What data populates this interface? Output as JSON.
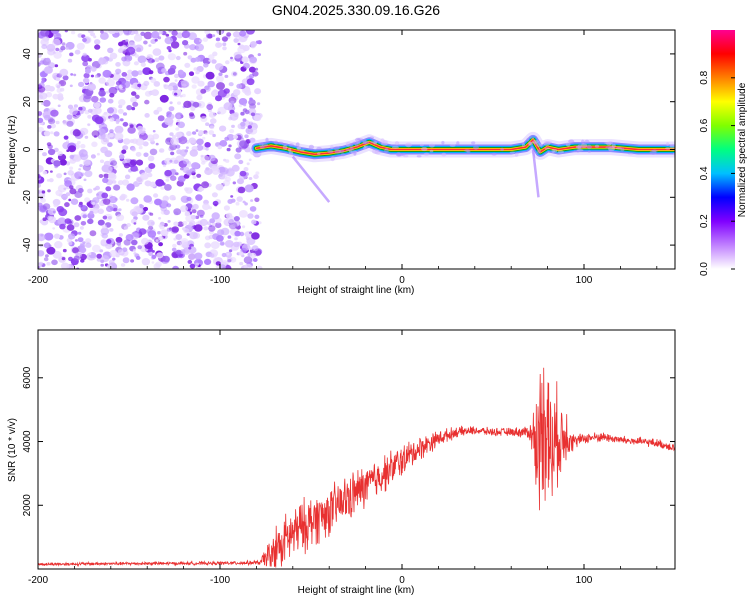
{
  "title": "GN04.2025.330.09.16.G26",
  "colors": {
    "snr_line": "#e83030",
    "axis": "#000000",
    "ridge_edge": "#1a9a1a"
  },
  "chart_data": [
    {
      "type": "heatmap",
      "xlabel": "Height of straight line (km)",
      "ylabel": "Frequency (Hz)",
      "xlim": [
        -200,
        150
      ],
      "ylim": [
        -50,
        50
      ],
      "xticks": [
        -200,
        -100,
        0,
        100
      ],
      "xtick_labels": [
        "-200",
        "-100",
        "0",
        "100"
      ],
      "yticks": [
        -40,
        -20,
        0,
        20,
        40
      ],
      "ytick_labels": [
        "-40",
        "-20",
        "0",
        "20",
        "40"
      ],
      "noise_region": {
        "x_from": -200,
        "x_to": -78,
        "color": "purple-violet speckle"
      },
      "ridge": [
        {
          "x": -80,
          "y": 0.5
        },
        {
          "x": -72,
          "y": 1.5
        },
        {
          "x": -64,
          "y": 0.5
        },
        {
          "x": -56,
          "y": -1
        },
        {
          "x": -48,
          "y": -2
        },
        {
          "x": -40,
          "y": -1.5
        },
        {
          "x": -32,
          "y": -0.5
        },
        {
          "x": -25,
          "y": 1
        },
        {
          "x": -18,
          "y": 3
        },
        {
          "x": -12,
          "y": 1
        },
        {
          "x": -6,
          "y": 0
        },
        {
          "x": 0,
          "y": 0
        },
        {
          "x": 20,
          "y": 0
        },
        {
          "x": 40,
          "y": 0
        },
        {
          "x": 60,
          "y": 0
        },
        {
          "x": 68,
          "y": 1
        },
        {
          "x": 72,
          "y": 4
        },
        {
          "x": 76,
          "y": -1
        },
        {
          "x": 80,
          "y": 1
        },
        {
          "x": 86,
          "y": 0
        },
        {
          "x": 95,
          "y": 1
        },
        {
          "x": 105,
          "y": 1
        },
        {
          "x": 115,
          "y": 1
        },
        {
          "x": 130,
          "y": 0
        },
        {
          "x": 150,
          "y": 0
        }
      ],
      "colorbar": {
        "label": "Normalized spectral amplitude",
        "range": [
          0,
          1
        ],
        "ticks": [
          0.0,
          0.2,
          0.4,
          0.6,
          0.8
        ],
        "tick_labels": [
          "0.0",
          "0.2",
          "0.4",
          "0.6",
          "0.8"
        ],
        "colormap": [
          "#ffffff",
          "#c080ff",
          "#8000ff",
          "#0000ff",
          "#00c0ff",
          "#00ff80",
          "#80ff00",
          "#ffff00",
          "#ff8000",
          "#ff0000",
          "#ff0090"
        ]
      }
    },
    {
      "type": "line",
      "xlabel": "Height of straight line (km)",
      "ylabel": "SNR (10 * v/v)",
      "xlim": [
        -200,
        150
      ],
      "ylim": [
        0,
        7500
      ],
      "xticks": [
        -200,
        -100,
        0,
        100
      ],
      "xtick_labels": [
        "-200",
        "-100",
        "0",
        "100"
      ],
      "yticks": [
        2000,
        4000,
        6000
      ],
      "ytick_labels": [
        "2000",
        "4000",
        "6000"
      ],
      "series": [
        {
          "name": "SNR",
          "x": [
            -200,
            -150,
            -100,
            -78,
            -70,
            -60,
            -50,
            -40,
            -30,
            -20,
            -10,
            0,
            10,
            20,
            30,
            40,
            50,
            60,
            70,
            75,
            78,
            80,
            82,
            85,
            88,
            90,
            95,
            100,
            110,
            120,
            130,
            140,
            150
          ],
          "y": [
            150,
            170,
            180,
            200,
            600,
            1100,
            1500,
            1800,
            2200,
            2600,
            3000,
            3400,
            3800,
            4100,
            4300,
            4350,
            4300,
            4300,
            4300,
            3800,
            5000,
            4500,
            3500,
            4200,
            4000,
            4300,
            4000,
            4100,
            4150,
            4050,
            4000,
            3950,
            3800
          ],
          "noise_amplitude": [
            60,
            60,
            60,
            80,
            900,
            1000,
            1000,
            900,
            900,
            800,
            700,
            600,
            450,
            300,
            200,
            150,
            150,
            150,
            250,
            2500,
            3000,
            3000,
            2500,
            1800,
            1500,
            1100,
            250,
            200,
            180,
            160,
            160,
            160,
            160
          ]
        }
      ]
    }
  ]
}
